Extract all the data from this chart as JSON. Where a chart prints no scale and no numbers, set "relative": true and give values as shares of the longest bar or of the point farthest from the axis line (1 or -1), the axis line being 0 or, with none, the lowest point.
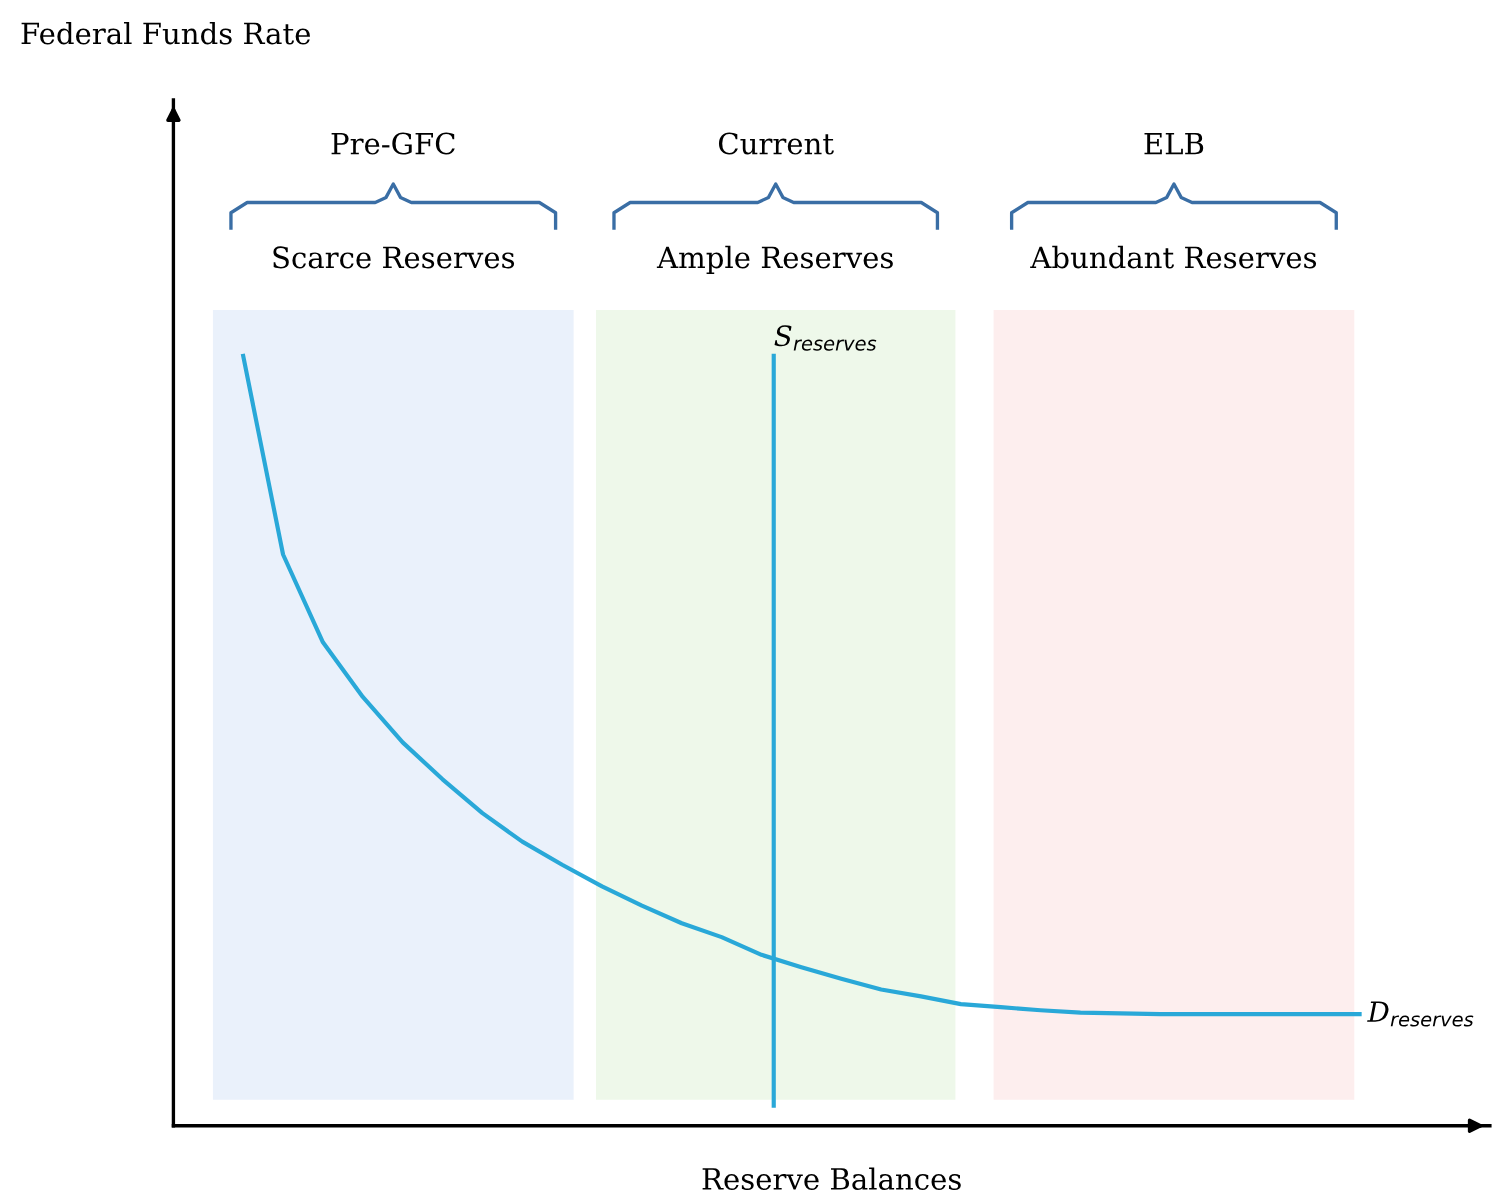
{
  "chart_data": {
    "type": "line",
    "relative": true,
    "xlabel": "Reserve Balances",
    "marker": "none",
    "line_style": "solid",
    "categories": [
      null,
      null,
      null,
      null,
      null,
      null,
      null,
      null,
      null,
      null,
      null,
      null,
      null,
      null,
      null,
      null,
      null,
      null,
      null,
      null,
      null,
      null,
      null,
      null,
      null,
      null,
      null,
      null,
      null
    ],
    "series": [
      {
        "name": "D$_{reserves}$",
        "color": "#29a8d8",
        "values": [
          1,
          0.742,
          0.628,
          0.557,
          0.498,
          0.45,
          0.406,
          0.369,
          0.339,
          0.311,
          0.286,
          0.263,
          0.245,
          0.222,
          0.206,
          0.191,
          0.177,
          0.168,
          0.158,
          0.154,
          0.15,
          0.147,
          0.146,
          0.145,
          0.145,
          0.145,
          0.145,
          0.145,
          0.145
        ]
      }
    ],
    "annotations": [
      "Federal Funds Rate",
      "Pre-GFC",
      "Scarce Reserves",
      "Current",
      "Ample Reserves",
      "ELB",
      "Abundant Reserves",
      "S$_{reserves}$"
    ]
  }
}
